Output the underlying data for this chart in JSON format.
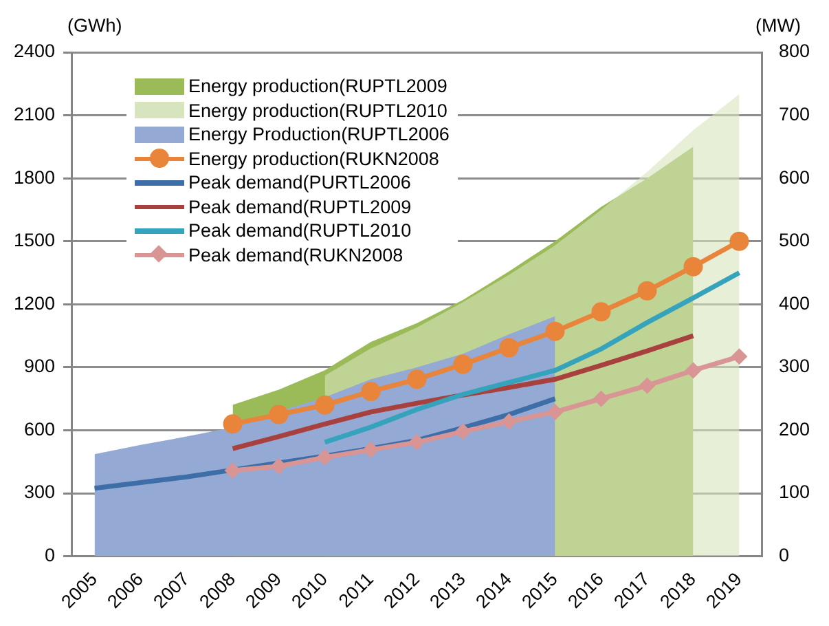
{
  "chart_data": {
    "type": "line",
    "ylabel": "(GWh)",
    "y2label": "(MW)",
    "categories": [
      "2005",
      "2006",
      "2007",
      "2008",
      "2009",
      "2010",
      "2011",
      "2012",
      "2013",
      "2014",
      "2015",
      "2016",
      "2017",
      "2018",
      "2019"
    ],
    "series": [
      {
        "name": "Energy production(RUPTL2009",
        "type": "area",
        "color": "#9bbb59",
        "values": [
          null,
          null,
          null,
          721,
          793,
          886,
          1021,
          1110,
          1221,
          1357,
          1500,
          1664,
          1800,
          1950,
          null
        ]
      },
      {
        "name": "Energy production(RUPTL2010",
        "type": "area",
        "color": "#d7e4bd",
        "values": [
          null,
          null,
          null,
          null,
          null,
          860,
          990,
          1090,
          1210,
          1340,
          1480,
          1650,
          1830,
          2029,
          2200
        ]
      },
      {
        "name": "Energy Production(RUPTL2006",
        "type": "area",
        "color": "#94a9d4",
        "values": [
          486,
          530,
          570,
          614,
          690,
          757,
          843,
          900,
          964,
          1057,
          1143,
          null,
          null,
          null,
          null
        ]
      },
      {
        "name": "Energy production(RUKN2008",
        "type": "line",
        "color": "#e8853a",
        "marker": "circle",
        "values": [
          null,
          null,
          null,
          630,
          675,
          720,
          785,
          843,
          914,
          993,
          1071,
          1164,
          1264,
          1379,
          1500
        ]
      },
      {
        "name": "Peak demand(PURTL2006",
        "type": "line",
        "axis": "y2",
        "color": "#3d6ea8",
        "marker": "none",
        "values": [
          108,
          117,
          126,
          137,
          148,
          159,
          171,
          184,
          204,
          225,
          250,
          null,
          null,
          null,
          null
        ]
      },
      {
        "name": "Peak demand(RUPTL2009",
        "type": "line",
        "axis": "y2",
        "color": "#a8403d",
        "marker": "none",
        "values": [
          null,
          null,
          null,
          171,
          190,
          210,
          229,
          243,
          256,
          268,
          281,
          303,
          326,
          350,
          null
        ]
      },
      {
        "name": "Peak demand(RUPTL2010",
        "type": "line",
        "axis": "y2",
        "color": "#36a3bd",
        "marker": "none",
        "values": [
          null,
          null,
          null,
          null,
          null,
          181,
          205,
          233,
          257,
          276,
          295,
          329,
          371,
          410,
          450
        ]
      },
      {
        "name": "Peak demand(RUKN2008",
        "type": "line",
        "axis": "y2",
        "color": "#d99594",
        "marker": "diamond",
        "values": [
          null,
          null,
          null,
          136,
          143,
          157,
          169,
          181,
          198,
          214,
          229,
          250,
          271,
          295,
          317
        ]
      }
    ],
    "ylim": [
      0,
      2400
    ],
    "yticks": [
      0,
      300,
      600,
      900,
      1200,
      1500,
      1800,
      2100,
      2400
    ],
    "y2lim": [
      0,
      800
    ],
    "y2ticks": [
      0,
      100,
      200,
      300,
      400,
      500,
      600,
      700,
      800
    ],
    "grid": "y",
    "legend": "top left"
  }
}
